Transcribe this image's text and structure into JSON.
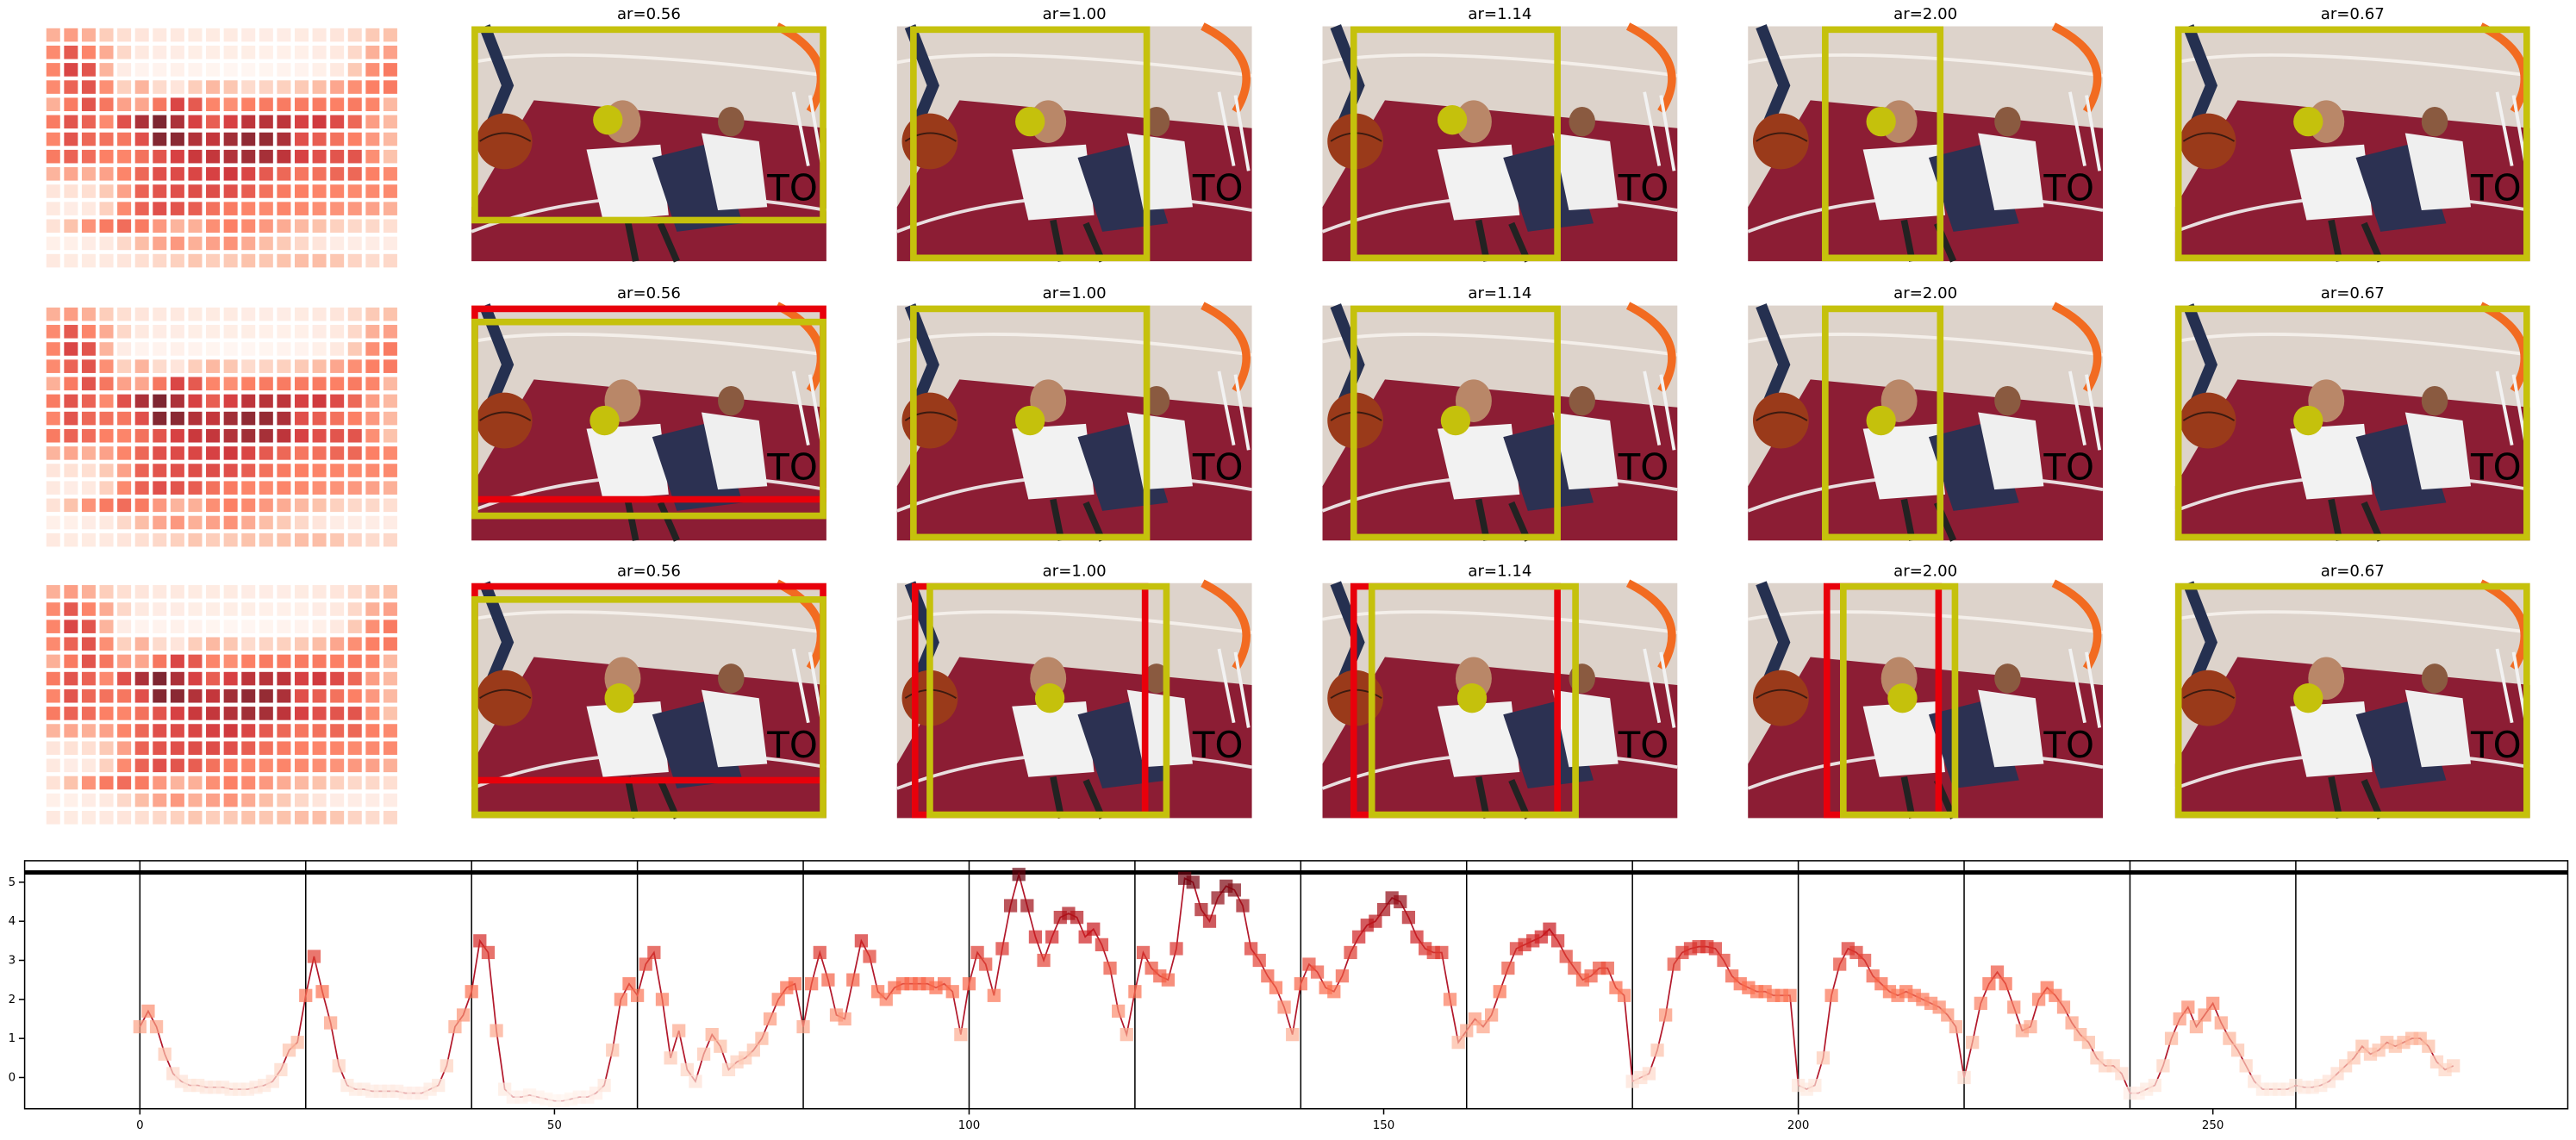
{
  "panels": [
    [
      "ar=0.56",
      "ar=1.00",
      "ar=1.14",
      "ar=2.00",
      "ar=0.67"
    ],
    [
      "ar=0.56",
      "ar=1.00",
      "ar=1.14",
      "ar=2.00",
      "ar=0.67"
    ],
    [
      "ar=0.56",
      "ar=1.00",
      "ar=1.14",
      "ar=2.00",
      "ar=0.67"
    ]
  ],
  "chart_data": {
    "type": "line",
    "cmap": "Reds",
    "x": [
      0,
      1,
      2,
      3,
      4,
      5,
      6,
      7,
      8,
      9,
      10,
      11,
      12,
      13,
      14,
      15,
      16,
      17,
      18,
      19,
      20,
      21,
      22,
      23,
      24,
      25,
      26,
      27,
      28,
      29,
      30,
      31,
      32,
      33,
      34,
      35,
      36,
      37,
      38,
      39,
      40,
      41,
      42,
      43,
      44,
      45,
      46,
      47,
      48,
      49,
      50,
      51,
      52,
      53,
      54,
      55,
      56,
      57,
      58,
      59,
      60,
      61,
      62,
      63,
      64,
      65,
      66,
      67,
      68,
      69,
      70,
      71,
      72,
      73,
      74,
      75,
      76,
      77,
      78,
      79,
      80,
      81,
      82,
      83,
      84,
      85,
      86,
      87,
      88,
      89,
      90,
      91,
      92,
      93,
      94,
      95,
      96,
      97,
      98,
      99,
      100,
      101,
      102,
      103,
      104,
      105,
      106,
      107,
      108,
      109,
      110,
      111,
      112,
      113,
      114,
      115,
      116,
      117,
      118,
      119,
      120,
      121,
      122,
      123,
      124,
      125,
      126,
      127,
      128,
      129,
      130,
      131,
      132,
      133,
      134,
      135,
      136,
      137,
      138,
      139,
      140,
      141,
      142,
      143,
      144,
      145,
      146,
      147,
      148,
      149,
      150,
      151,
      152,
      153,
      154,
      155,
      156,
      157,
      158,
      159,
      160,
      161,
      162,
      163,
      164,
      165,
      166,
      167,
      168,
      169,
      170,
      171,
      172,
      173,
      174,
      175,
      176,
      177,
      178,
      179,
      180,
      181,
      182,
      183,
      184,
      185,
      186,
      187,
      188,
      189,
      190,
      191,
      192,
      193,
      194,
      195,
      196,
      197,
      198,
      199,
      200,
      201,
      202,
      203,
      204,
      205,
      206,
      207,
      208,
      209,
      210,
      211,
      212,
      213,
      214,
      215,
      216,
      217,
      218,
      219,
      220,
      221,
      222,
      223,
      224,
      225,
      226,
      227,
      228,
      229,
      230,
      231,
      232,
      233,
      234,
      235,
      236,
      237,
      238,
      239,
      240,
      241,
      242,
      243,
      244,
      245,
      246,
      247,
      248,
      249,
      250,
      251,
      252,
      253,
      254,
      255,
      256,
      257,
      258,
      259,
      260,
      261,
      262,
      263,
      264,
      265,
      266,
      267,
      268,
      269,
      270,
      271,
      272,
      273,
      274,
      275,
      276,
      277,
      278,
      279
    ],
    "values": [
      1.3,
      1.7,
      1.3,
      0.6,
      0.1,
      -0.1,
      -0.2,
      -0.2,
      -0.25,
      -0.25,
      -0.25,
      -0.3,
      -0.3,
      -0.3,
      -0.25,
      -0.2,
      -0.1,
      0.2,
      0.7,
      0.9,
      2.1,
      3.1,
      2.2,
      1.4,
      0.3,
      -0.2,
      -0.3,
      -0.3,
      -0.35,
      -0.35,
      -0.35,
      -0.35,
      -0.4,
      -0.4,
      -0.4,
      -0.3,
      -0.2,
      0.3,
      1.3,
      1.6,
      2.2,
      3.5,
      3.2,
      1.2,
      -0.3,
      -0.5,
      -0.5,
      -0.45,
      -0.5,
      -0.55,
      -0.6,
      -0.6,
      -0.55,
      -0.5,
      -0.5,
      -0.4,
      -0.2,
      0.7,
      2.0,
      2.4,
      2.1,
      2.9,
      3.2,
      2.0,
      0.5,
      1.2,
      0.2,
      -0.1,
      0.6,
      1.1,
      0.8,
      0.2,
      0.4,
      0.5,
      0.7,
      1.0,
      1.5,
      2.0,
      2.3,
      2.4,
      1.3,
      2.4,
      3.2,
      2.5,
      1.6,
      1.5,
      2.5,
      3.5,
      3.1,
      2.2,
      2.0,
      2.3,
      2.4,
      2.4,
      2.4,
      2.4,
      2.3,
      2.4,
      2.2,
      1.1,
      2.4,
      3.2,
      2.9,
      2.1,
      3.3,
      4.4,
      5.2,
      4.4,
      3.6,
      3.0,
      3.6,
      4.1,
      4.2,
      4.1,
      3.6,
      3.8,
      3.4,
      2.8,
      1.7,
      1.1,
      2.2,
      3.2,
      2.8,
      2.6,
      2.5,
      3.3,
      5.1,
      5.0,
      4.3,
      4.0,
      4.6,
      4.9,
      4.8,
      4.4,
      3.3,
      3.0,
      2.6,
      2.3,
      1.8,
      1.1,
      2.4,
      2.9,
      2.7,
      2.3,
      2.2,
      2.6,
      3.2,
      3.6,
      3.9,
      4.0,
      4.3,
      4.6,
      4.5,
      4.1,
      3.6,
      3.3,
      3.2,
      3.2,
      2.0,
      0.9,
      1.2,
      1.5,
      1.3,
      1.6,
      2.2,
      2.8,
      3.3,
      3.4,
      3.5,
      3.6,
      3.8,
      3.5,
      3.1,
      2.8,
      2.5,
      2.6,
      2.8,
      2.8,
      2.3,
      2.1,
      -0.1,
      0.0,
      0.1,
      0.7,
      1.6,
      2.9,
      3.2,
      3.3,
      3.35,
      3.35,
      3.3,
      3.0,
      2.6,
      2.4,
      2.3,
      2.2,
      2.2,
      2.1,
      2.1,
      2.1,
      -0.2,
      -0.3,
      -0.2,
      0.5,
      2.1,
      2.9,
      3.3,
      3.2,
      3.0,
      2.6,
      2.4,
      2.2,
      2.1,
      2.2,
      2.1,
      2.0,
      1.9,
      1.8,
      1.6,
      1.3,
      0.0,
      0.9,
      1.9,
      2.4,
      2.7,
      2.4,
      1.8,
      1.2,
      1.3,
      2.0,
      2.3,
      2.1,
      1.8,
      1.4,
      1.1,
      0.9,
      0.5,
      0.3,
      0.3,
      0.1,
      -0.4,
      -0.4,
      -0.3,
      -0.2,
      0.3,
      1.0,
      1.5,
      1.8,
      1.3,
      1.6,
      1.9,
      1.4,
      1.0,
      0.7,
      0.3,
      -0.1,
      -0.3,
      -0.3,
      -0.3,
      -0.3,
      -0.2,
      -0.25,
      -0.25,
      -0.2,
      -0.1,
      0.1,
      0.3,
      0.5,
      0.8,
      0.6,
      0.7,
      0.9,
      0.8,
      0.9,
      1.0,
      1.0,
      0.8,
      0.4,
      0.2,
      0.3
    ],
    "color": "#b2182b",
    "xlim": [
      -13.9,
      292.8
    ],
    "xticks": [
      0,
      50,
      100,
      150,
      200,
      250
    ],
    "ylim": [
      -0.8,
      5.55
    ],
    "yticks": [
      0,
      1,
      2,
      3,
      4,
      5
    ],
    "vlines": [
      0,
      20,
      40,
      60,
      80,
      100,
      120,
      140,
      160,
      180,
      200,
      220,
      240,
      260
    ],
    "hline": 5.25
  }
}
